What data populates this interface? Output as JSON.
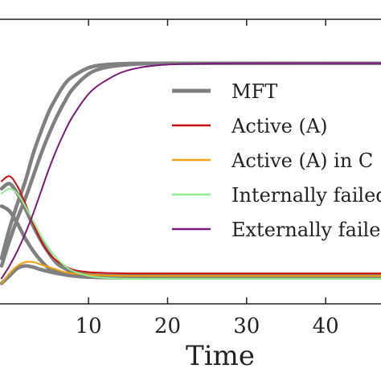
{
  "chart_data": {
    "type": "line",
    "xlabel": "Time",
    "ylabel": "",
    "xlim": [
      -1.2,
      47
    ],
    "ylim": [
      0,
      1
    ],
    "x_ticks": [
      "10",
      "20",
      "30",
      "40"
    ],
    "grid": false,
    "legend_placement": "center-right",
    "legend": [
      {
        "label": "MFT",
        "color": "#808080"
      },
      {
        "label": "Active (A)",
        "color": "#cc1111"
      },
      {
        "label": "Active (A) in C",
        "color": "#f5a00a"
      },
      {
        "label": "Internally failed",
        "color": "#90ee90"
      },
      {
        "label": "Externally failed",
        "color": "#7b1a7b"
      }
    ],
    "series": [
      {
        "name": "MFT",
        "color": "#808080",
        "x": [
          -1,
          0,
          1,
          2,
          3,
          4,
          5,
          6,
          7,
          8,
          10,
          12,
          15,
          20,
          30,
          47
        ],
        "values": [
          0.15,
          0.27,
          0.37,
          0.46,
          0.57,
          0.66,
          0.74,
          0.8,
          0.85,
          0.88,
          0.915,
          0.927,
          0.932,
          0.933,
          0.933,
          0.933
        ]
      },
      {
        "name": "MFT",
        "color": "#808080",
        "x": [
          -1,
          0,
          1,
          2,
          3,
          4,
          5,
          6,
          7,
          8,
          10,
          12,
          15,
          20,
          30,
          47
        ],
        "values": [
          0.12,
          0.22,
          0.31,
          0.39,
          0.48,
          0.57,
          0.65,
          0.72,
          0.78,
          0.83,
          0.89,
          0.915,
          0.928,
          0.933,
          0.933,
          0.933
        ]
      },
      {
        "name": "MFT",
        "color": "#808080",
        "x": [
          -1,
          0,
          1,
          2,
          3,
          4,
          5,
          6,
          7,
          8,
          10,
          12,
          15,
          20,
          47
        ],
        "values": [
          0.43,
          0.45,
          0.41,
          0.35,
          0.28,
          0.22,
          0.17,
          0.13,
          0.11,
          0.095,
          0.085,
          0.081,
          0.08,
          0.08,
          0.08
        ]
      },
      {
        "name": "MFT",
        "color": "#808080",
        "x": [
          -1,
          0,
          1,
          2,
          3,
          4,
          5,
          6,
          7,
          8,
          10,
          12,
          15,
          20,
          47
        ],
        "values": [
          0.36,
          0.34,
          0.29,
          0.23,
          0.18,
          0.14,
          0.11,
          0.095,
          0.085,
          0.08,
          0.076,
          0.075,
          0.075,
          0.075,
          0.075
        ]
      },
      {
        "name": "MFT",
        "color": "#808080",
        "x": [
          -1,
          0,
          1,
          2,
          3,
          4,
          6,
          8,
          10,
          15,
          20,
          47
        ],
        "values": [
          0.05,
          0.08,
          0.11,
          0.12,
          0.115,
          0.105,
          0.09,
          0.08,
          0.075,
          0.072,
          0.072,
          0.072
        ]
      },
      {
        "name": "Active (A)",
        "color": "#cc1111",
        "x": [
          -1,
          0,
          1,
          2,
          3,
          4,
          5,
          6,
          7,
          8,
          10,
          12,
          15,
          20,
          47
        ],
        "values": [
          0.46,
          0.48,
          0.44,
          0.37,
          0.29,
          0.22,
          0.17,
          0.14,
          0.12,
          0.105,
          0.095,
          0.092,
          0.09,
          0.09,
          0.09
        ]
      },
      {
        "name": "Active (A) in C",
        "color": "#f5a00a",
        "x": [
          -1,
          0,
          1,
          2,
          3,
          4,
          5,
          6,
          7,
          8,
          10,
          12,
          15,
          20,
          47
        ],
        "values": [
          0.05,
          0.09,
          0.12,
          0.135,
          0.135,
          0.125,
          0.115,
          0.105,
          0.095,
          0.09,
          0.085,
          0.082,
          0.08,
          0.08,
          0.08
        ]
      },
      {
        "name": "Internally failed",
        "color": "#90ee90",
        "x": [
          -1,
          0,
          1,
          2,
          3,
          4,
          5,
          6,
          7,
          8,
          10,
          12,
          15,
          20,
          47
        ],
        "values": [
          0.41,
          0.43,
          0.41,
          0.36,
          0.3,
          0.24,
          0.19,
          0.15,
          0.12,
          0.1,
          0.08,
          0.072,
          0.068,
          0.068,
          0.068
        ]
      },
      {
        "name": "Externally failed",
        "color": "#7b1a7b",
        "x": [
          -1,
          0,
          1,
          2,
          3,
          4,
          5,
          6,
          7,
          8,
          10,
          12,
          15,
          20,
          30,
          47
        ],
        "values": [
          0.07,
          0.12,
          0.18,
          0.25,
          0.33,
          0.42,
          0.51,
          0.59,
          0.66,
          0.72,
          0.81,
          0.86,
          0.905,
          0.928,
          0.933,
          0.933
        ]
      }
    ]
  }
}
